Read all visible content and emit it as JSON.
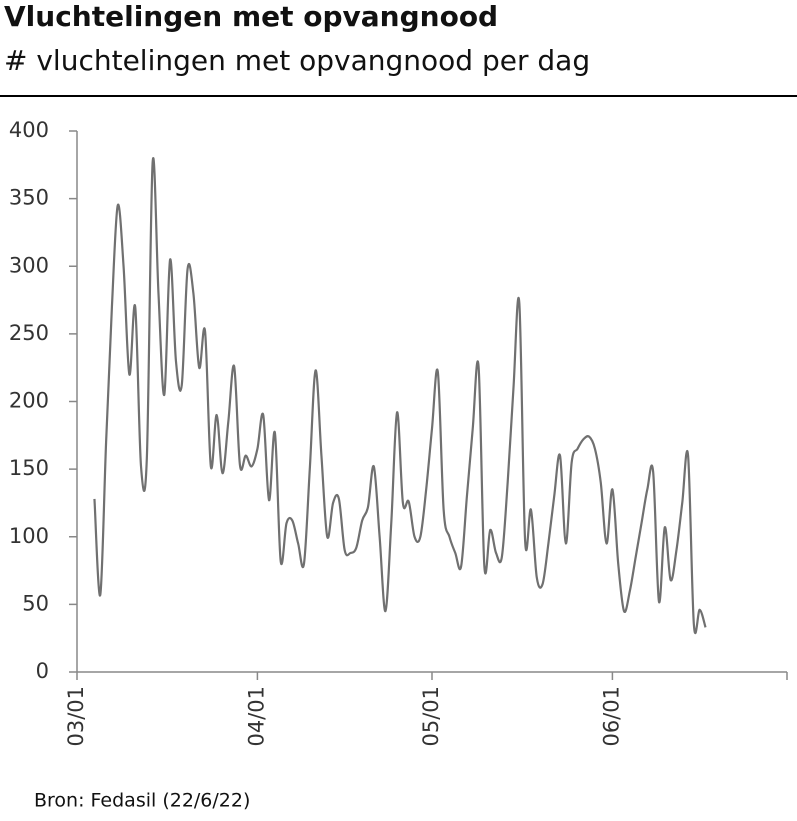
{
  "chart_data": {
    "type": "line",
    "title": "Vluchtelingen met opvangnood",
    "subtitle": "# vluchtelingen met opvangnood per dag",
    "source": "Bron: Fedasil (22/6/22)",
    "x": [
      3,
      4,
      5,
      6,
      7,
      8,
      9,
      10,
      11,
      12,
      13,
      14,
      15,
      16,
      17,
      18,
      19,
      20,
      21,
      22,
      23,
      24,
      25,
      26,
      27,
      28,
      29,
      30,
      31,
      32,
      33,
      34,
      35,
      36,
      37,
      38,
      39,
      40,
      41,
      42,
      43,
      44,
      45,
      46,
      47,
      48,
      49,
      50,
      51,
      52,
      53,
      54,
      55,
      56,
      57,
      58,
      59,
      60,
      61,
      62,
      63,
      64,
      65,
      66,
      67,
      68,
      69,
      70,
      71,
      72,
      73,
      74,
      75,
      76,
      77,
      78,
      79,
      80,
      81,
      82,
      83,
      84,
      85,
      86,
      87,
      88,
      89,
      90,
      91,
      92,
      93,
      94,
      95,
      96,
      97,
      98,
      99,
      100,
      101,
      102,
      103,
      104,
      105,
      106,
      107,
      108
    ],
    "series": [
      {
        "name": "vluchtelingen met opvangnood",
        "color": "#707070",
        "values": [
          128,
          57,
          170,
          270,
          345,
          300,
          220,
          270,
          152,
          158,
          377,
          280,
          205,
          305,
          230,
          212,
          298,
          280,
          225,
          252,
          152,
          190,
          147,
          185,
          226,
          153,
          160,
          152,
          165,
          190,
          127,
          177,
          82,
          110,
          112,
          95,
          80,
          150,
          223,
          160,
          100,
          125,
          128,
          90,
          88,
          92,
          112,
          122,
          152,
          100,
          45,
          110,
          192,
          125,
          126,
          100,
          100,
          135,
          180,
          222,
          120,
          100,
          88,
          78,
          130,
          180,
          226,
          78,
          105,
          88,
          85,
          140,
          210,
          273,
          97,
          120,
          70,
          65,
          95,
          130,
          160,
          95,
          155,
          165,
          172,
          174,
          165,
          140,
          95,
          135,
          80,
          45,
          60,
          85,
          110,
          135,
          148,
          52,
          107,
          68,
          90,
          125,
          160,
          35,
          46,
          33
        ]
      }
    ],
    "xlim": [
      0,
      122
    ],
    "xticks": [
      {
        "value": 0,
        "label": "03/01"
      },
      {
        "value": 31,
        "label": "04/01"
      },
      {
        "value": 61,
        "label": "05/01"
      },
      {
        "value": 92,
        "label": "06/01"
      }
    ],
    "ylim": [
      0,
      400
    ],
    "yticks": [
      0,
      50,
      100,
      150,
      200,
      250,
      300,
      350,
      400
    ]
  }
}
